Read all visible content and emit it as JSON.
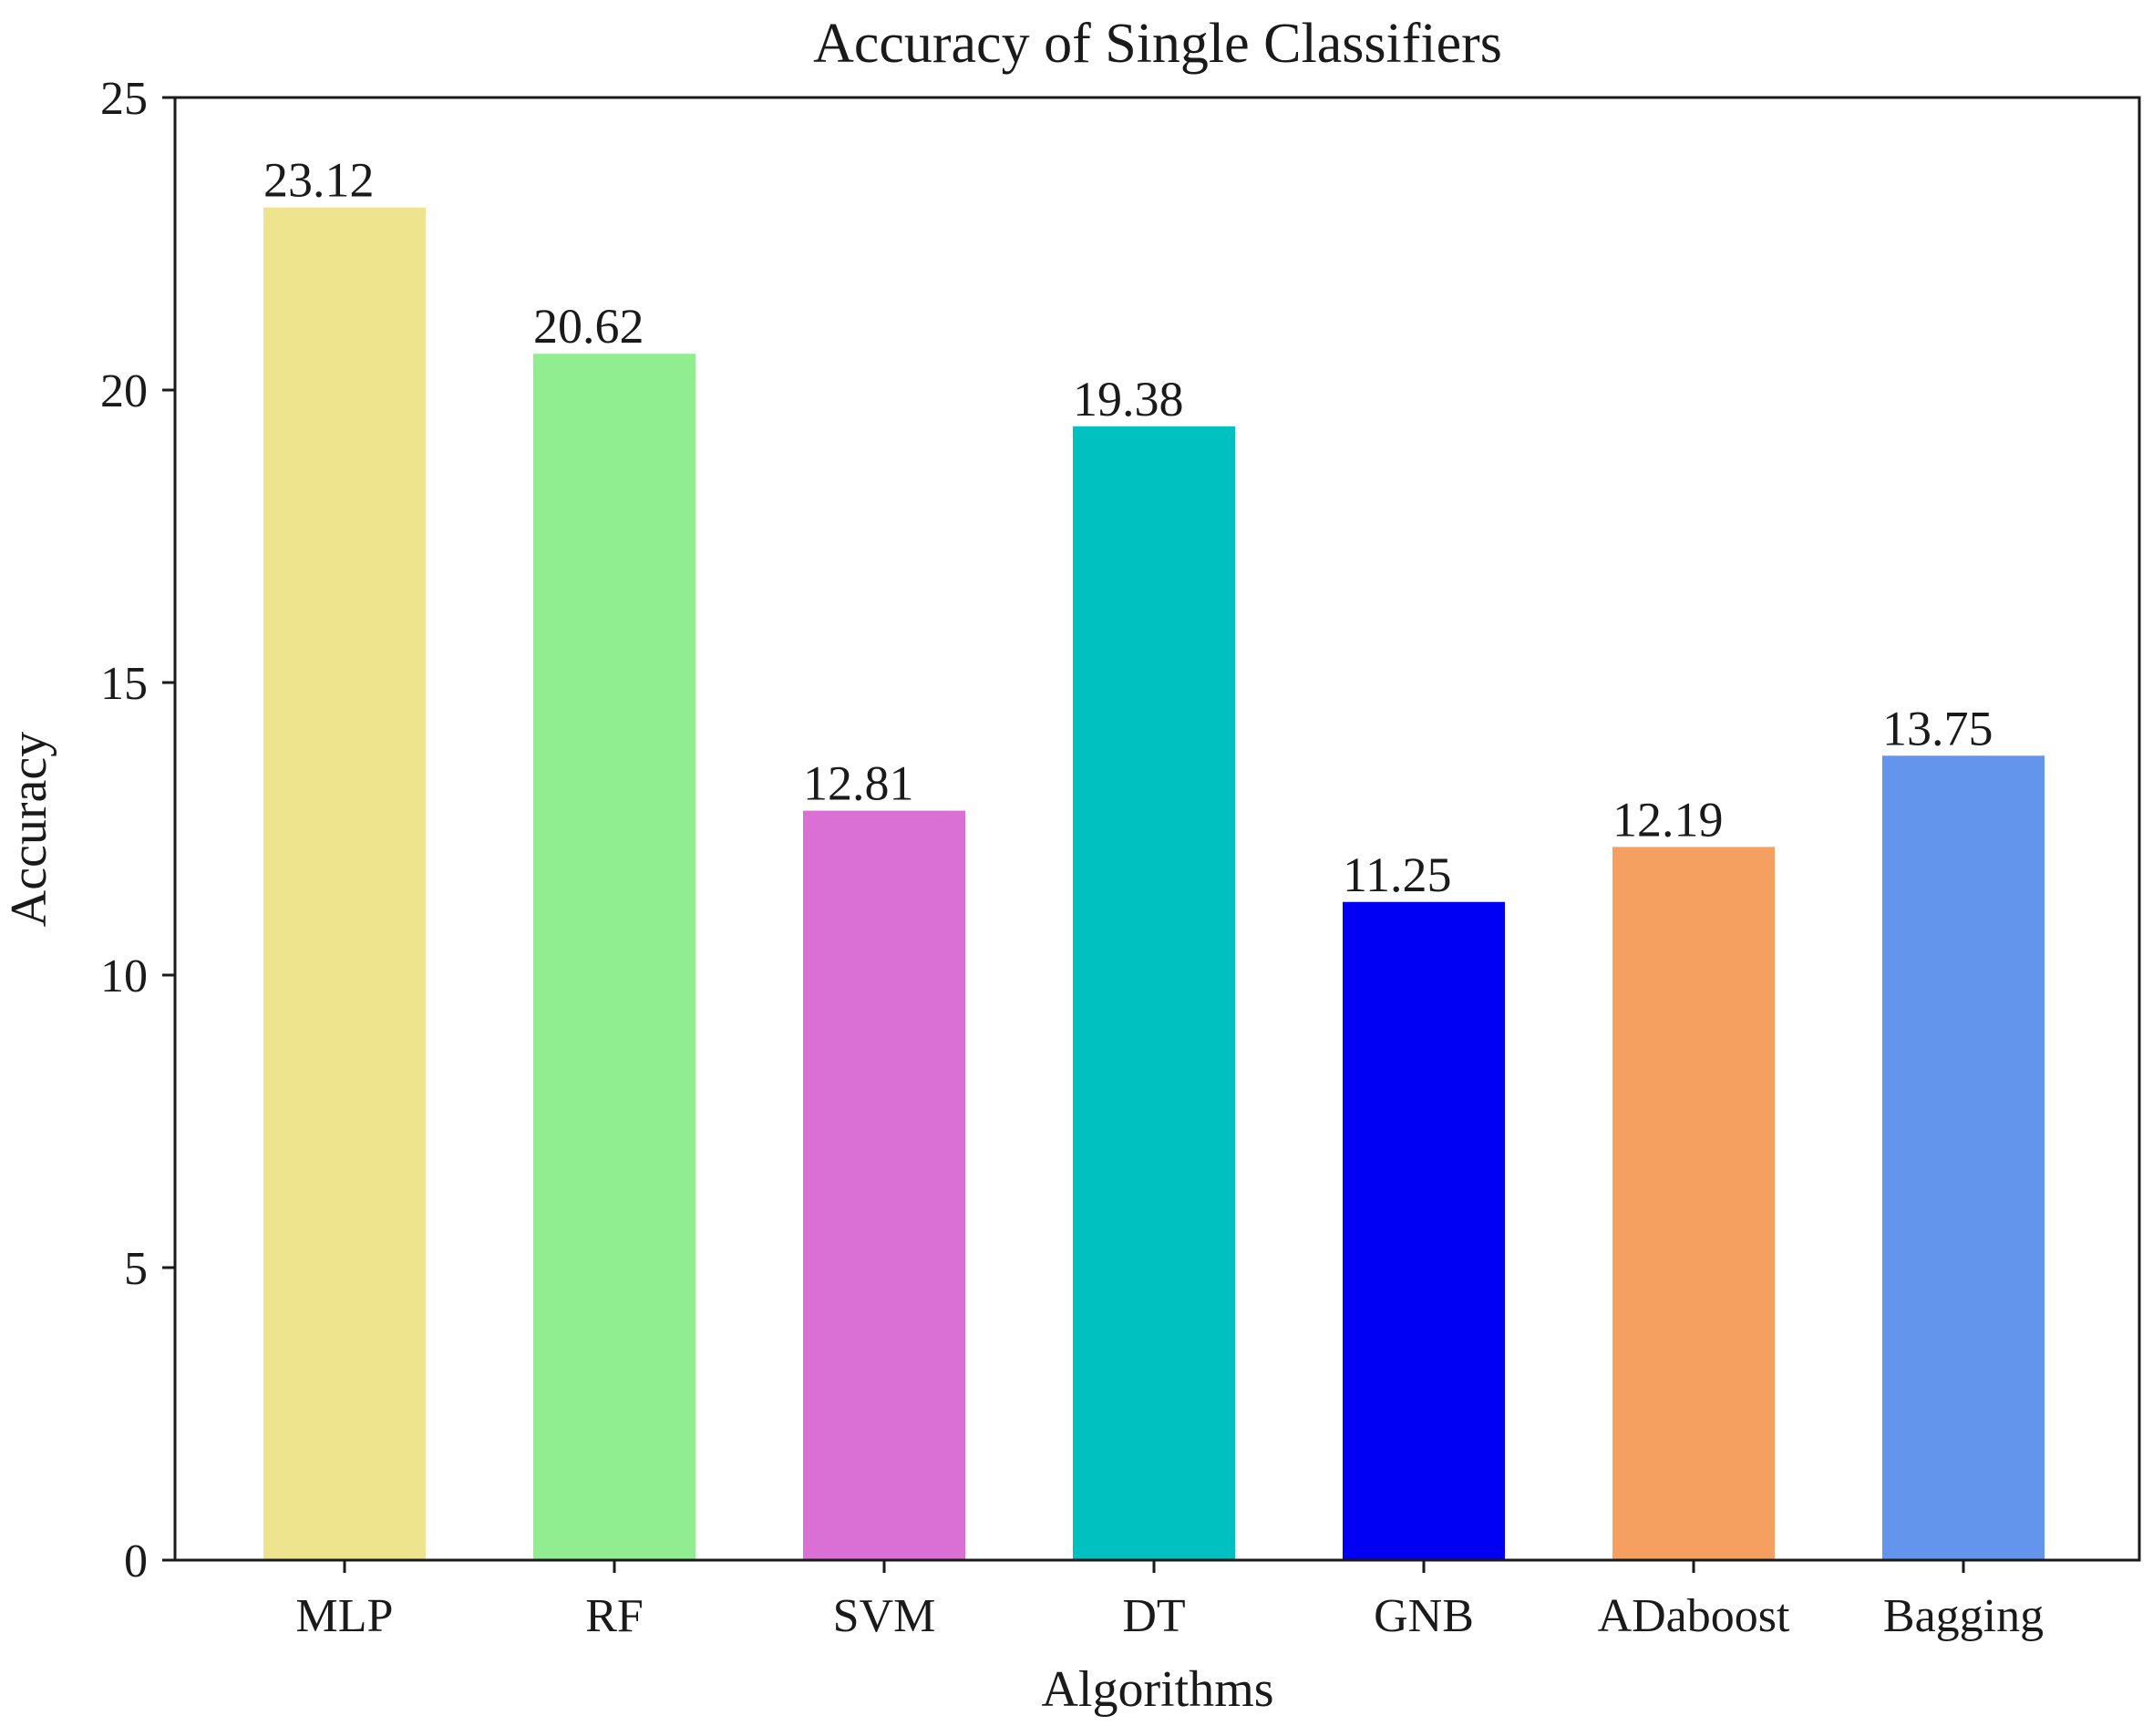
{
  "chart_data": {
    "type": "bar",
    "title": "Accuracy of Single Classifiers",
    "xlabel": "Algorithms",
    "ylabel": "Accuracy",
    "categories": [
      "MLP",
      "RF",
      "SVM",
      "DT",
      "GNB",
      "ADaboost",
      "Bagging"
    ],
    "values": [
      23.12,
      20.62,
      12.81,
      19.38,
      11.25,
      12.19,
      13.75
    ],
    "value_labels": [
      "23.12",
      "20.62",
      "12.81",
      "19.38",
      "11.25",
      "12.19",
      "13.75"
    ],
    "colors": [
      "#EEE48E",
      "#90EE90",
      "#DA70D6",
      "#00C0C0",
      "#0000F5",
      "#F5A060",
      "#6495ED"
    ],
    "ylim": [
      0,
      25
    ],
    "yticks": [
      0,
      5,
      10,
      15,
      20,
      25
    ],
    "ytick_labels": [
      "0",
      "5",
      "10",
      "15",
      "20",
      "25"
    ],
    "grid": false,
    "legend": "none"
  }
}
